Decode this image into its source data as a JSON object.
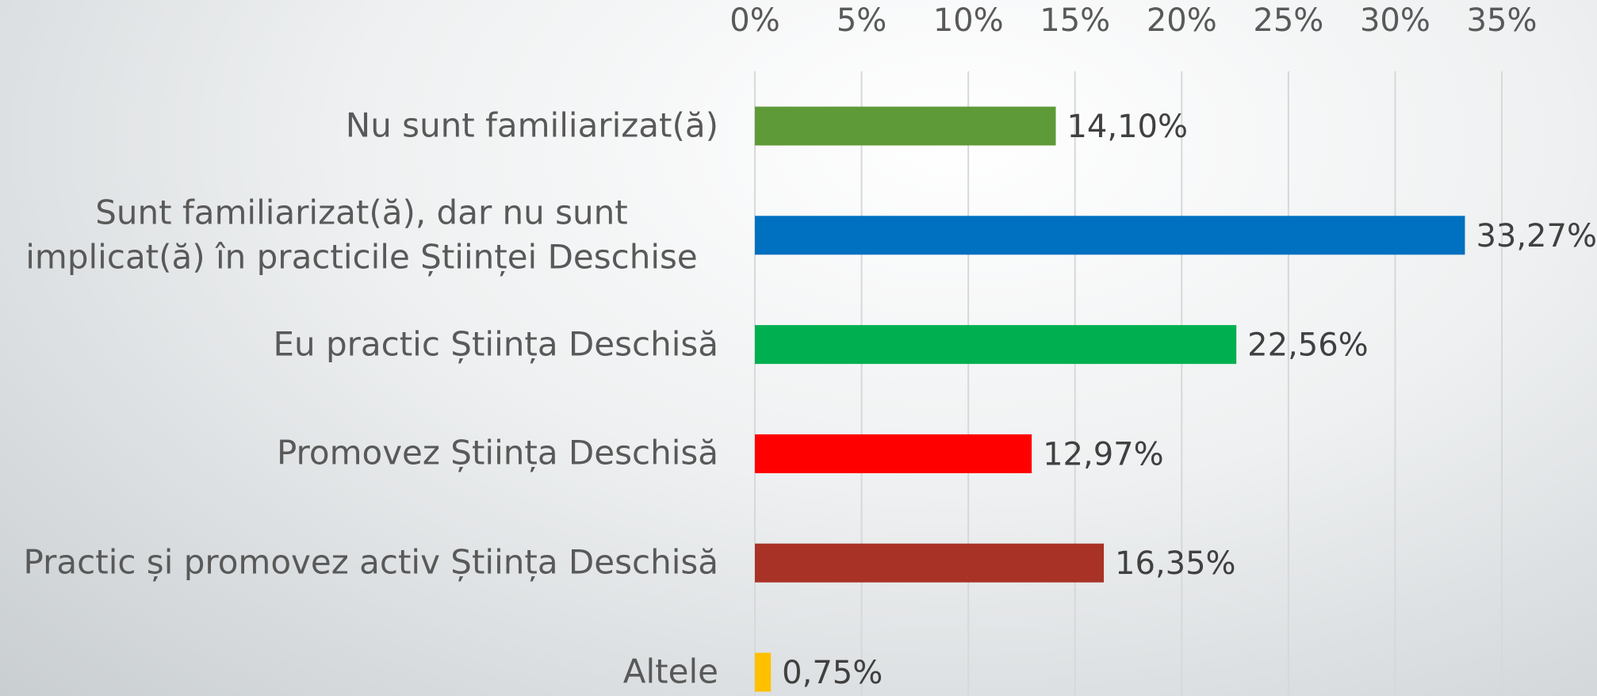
{
  "chart_data": {
    "type": "bar",
    "orientation": "horizontal",
    "categories": [
      "Nu sunt familiarizat(ă)",
      "Sunt familiarizat(ă), dar nu sunt implicat(ă) în practicile Științei Deschise",
      "Eu practic Știința Deschisă",
      "Promovez Știința Deschisă",
      "Practic și promovez activ Știința Deschisă",
      "Altele"
    ],
    "values": [
      14.1,
      33.27,
      22.56,
      12.97,
      16.35,
      0.75
    ],
    "value_labels": [
      "14,10%",
      "33,27%",
      "22,56%",
      "12,97%",
      "16,35%",
      "0,75%"
    ],
    "colors": [
      "#5f9a38",
      "#0070c0",
      "#00b050",
      "#ff0000",
      "#a93226",
      "#ffc000"
    ],
    "xlim": [
      0,
      35
    ],
    "xticks": [
      {
        "value": 0,
        "label": "0%"
      },
      {
        "value": 5,
        "label": "5%"
      },
      {
        "value": 10,
        "label": "10%"
      },
      {
        "value": 15,
        "label": "15%"
      },
      {
        "value": 20,
        "label": "20%"
      },
      {
        "value": 25,
        "label": "25%"
      },
      {
        "value": 30,
        "label": "30%"
      },
      {
        "value": 35,
        "label": "35%"
      }
    ],
    "grid": true
  }
}
